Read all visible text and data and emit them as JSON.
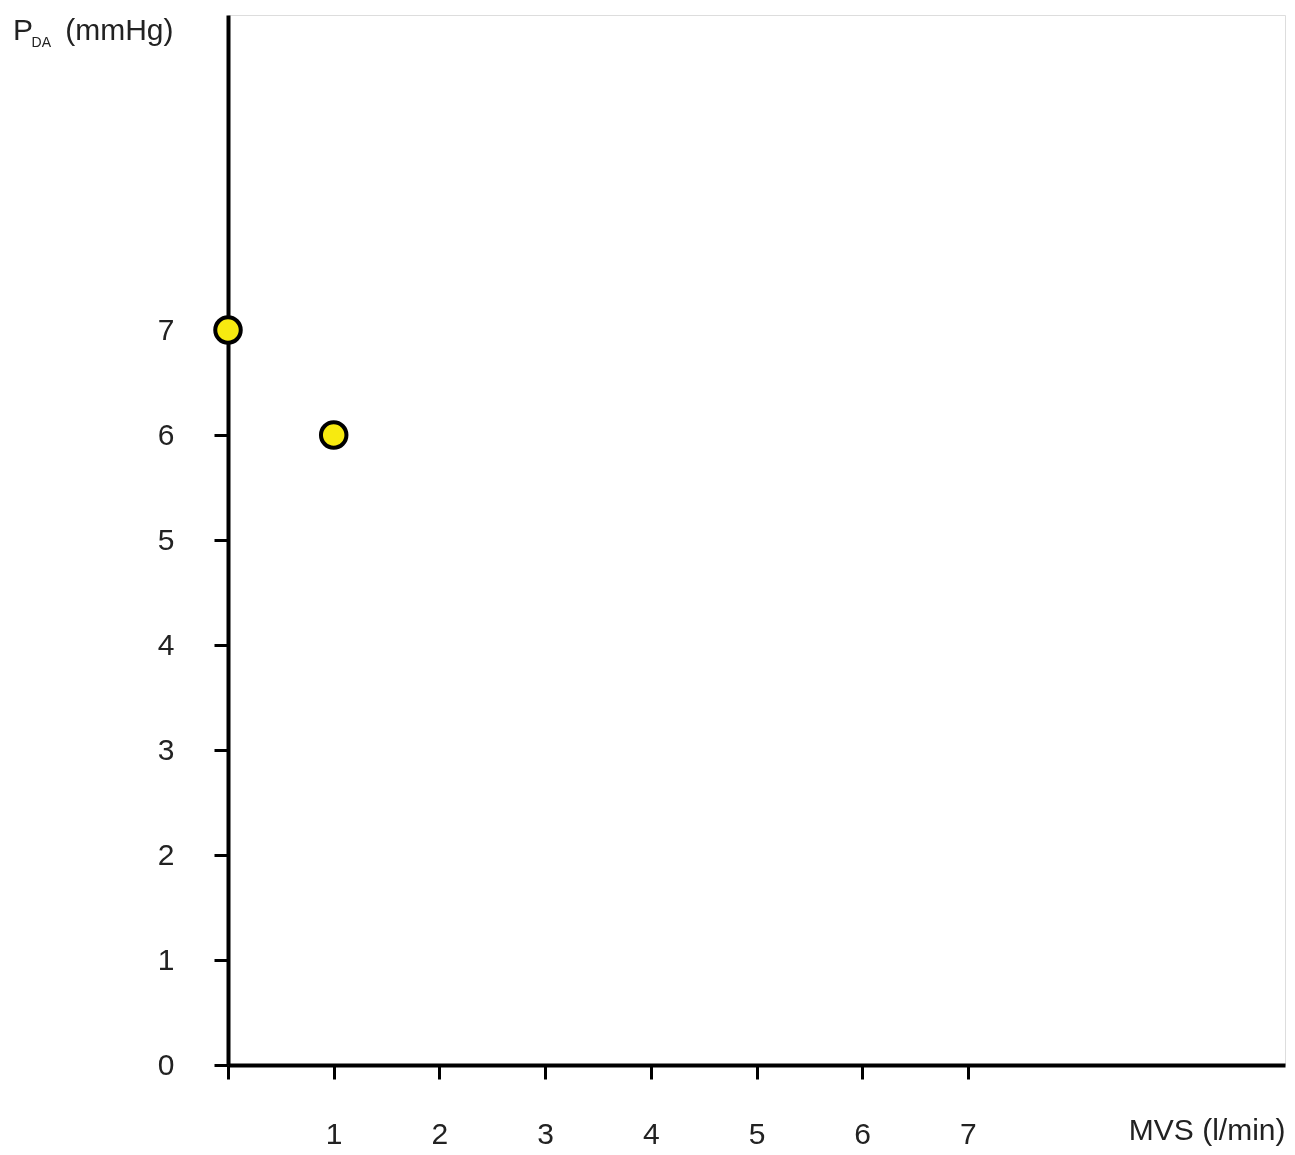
{
  "chart_data": {
    "type": "scatter",
    "xlabel": "MVS (l/min)",
    "ylabel": "P$_{DA}$ (mmHg)",
    "x": [
      0,
      1
    ],
    "series": [
      {
        "color": "#f7ea10",
        "values": [
          7,
          6
        ]
      }
    ],
    "xlim": [
      0,
      10
    ],
    "ylim": [
      0,
      10
    ],
    "xticks": [
      {
        "value": 0,
        "label": null
      },
      1,
      2,
      3,
      4,
      5,
      6,
      7
    ],
    "yticks": [
      0,
      1,
      2,
      3,
      4,
      5,
      6,
      7
    ],
    "marker": "circle",
    "grid": false
  }
}
